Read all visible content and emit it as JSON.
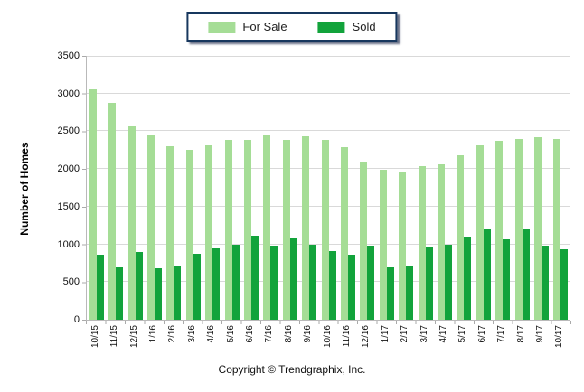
{
  "chart_data": {
    "type": "bar",
    "title": "",
    "xlabel": "",
    "ylabel": "Number of Homes",
    "ylim": [
      0,
      3500
    ],
    "ytick_step": 500,
    "grid": true,
    "legend_position": "top-center",
    "categories": [
      "10/15",
      "11/15",
      "12/15",
      "1/16",
      "2/16",
      "3/16",
      "4/16",
      "5/16",
      "6/16",
      "7/16",
      "8/16",
      "9/16",
      "10/16",
      "11/16",
      "12/16",
      "1/17",
      "2/17",
      "3/17",
      "4/17",
      "5/17",
      "6/17",
      "7/17",
      "8/17",
      "9/17",
      "10/17"
    ],
    "series": [
      {
        "name": "For Sale",
        "color": "#A5DD96",
        "values": [
          3060,
          2880,
          2580,
          2450,
          2300,
          2250,
          2310,
          2390,
          2380,
          2440,
          2390,
          2430,
          2390,
          2290,
          2100,
          1990,
          1960,
          2040,
          2060,
          2180,
          2310,
          2370,
          2400,
          2420,
          2400
        ]
      },
      {
        "name": "Sold",
        "color": "#12A33B",
        "values": [
          860,
          690,
          900,
          680,
          710,
          870,
          950,
          1000,
          1120,
          980,
          1080,
          990,
          910,
          860,
          980,
          700,
          710,
          960,
          990,
          1100,
          1210,
          1070,
          1200,
          980,
          940
        ]
      }
    ]
  },
  "colors": {
    "legend_border": "#17375E",
    "gridline": "#D9D9D9",
    "axis_line": "#B9B9B9"
  },
  "footer": {
    "copyright": "Copyright © Trendgraphix, Inc."
  }
}
